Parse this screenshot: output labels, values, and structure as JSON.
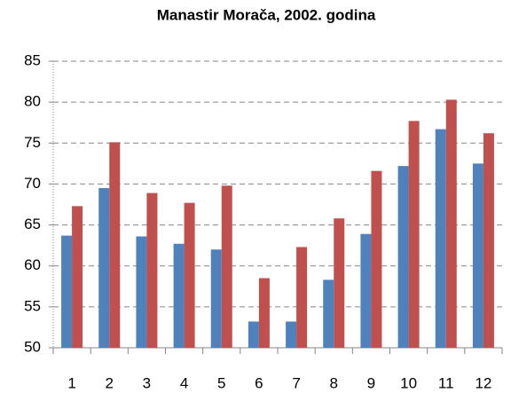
{
  "chart_data": {
    "type": "bar",
    "title": "Manastir Morača, 2002. godina",
    "categories": [
      "1",
      "2",
      "3",
      "4",
      "5",
      "6",
      "7",
      "8",
      "9",
      "10",
      "11",
      "12"
    ],
    "series": [
      {
        "color": "#4f81bd",
        "values": [
          63.7,
          69.5,
          63.6,
          62.7,
          62.0,
          53.2,
          53.2,
          58.3,
          63.9,
          72.2,
          76.7,
          72.5
        ]
      },
      {
        "color": "#c0504d",
        "values": [
          67.3,
          75.1,
          68.9,
          67.7,
          69.8,
          58.5,
          62.3,
          65.8,
          71.6,
          77.7,
          80.3,
          76.2
        ]
      }
    ],
    "ylim": [
      50,
      85
    ],
    "yticks": [
      50,
      55,
      60,
      65,
      70,
      75,
      80,
      85
    ],
    "grid": true
  }
}
